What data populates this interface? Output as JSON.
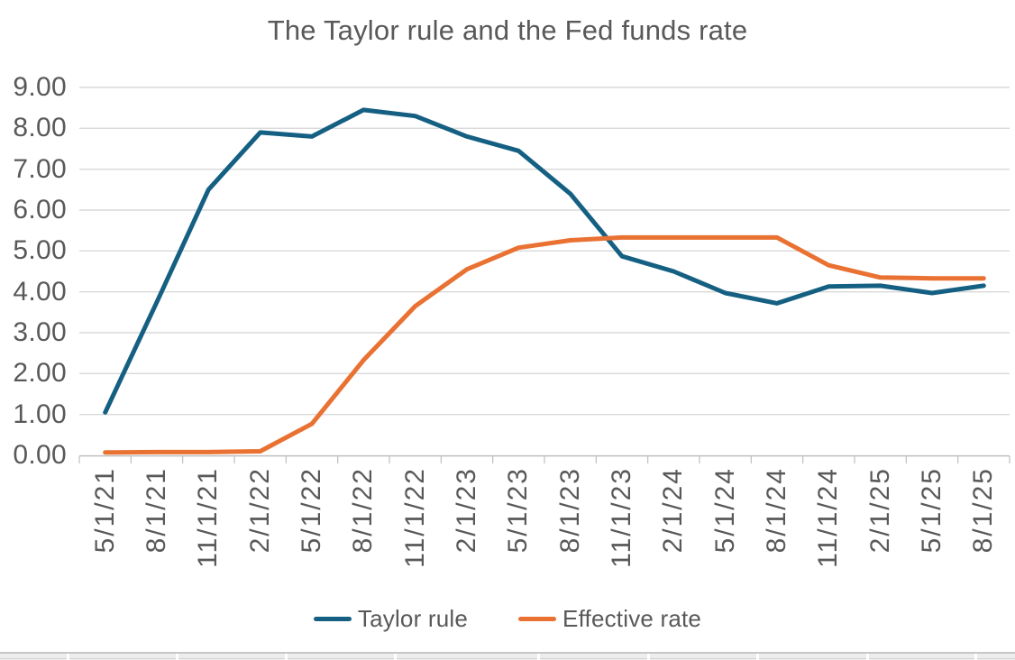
{
  "chart_data": {
    "type": "line",
    "title": "The Taylor rule and the Fed funds rate",
    "categories": [
      "5/1/21",
      "8/1/21",
      "11/1/21",
      "2/1/22",
      "5/1/22",
      "8/1/22",
      "11/1/22",
      "2/1/23",
      "5/1/23",
      "8/1/23",
      "11/1/23",
      "2/1/24",
      "5/1/24",
      "8/1/24",
      "11/1/24",
      "2/1/25",
      "5/1/25",
      "8/1/25"
    ],
    "series": [
      {
        "name": "Taylor rule",
        "color": "#156082",
        "values": [
          1.05,
          3.75,
          6.5,
          7.9,
          7.8,
          8.45,
          8.3,
          7.8,
          7.45,
          6.4,
          4.87,
          4.5,
          3.97,
          3.72,
          4.13,
          4.15,
          3.97,
          4.15
        ]
      },
      {
        "name": "Effective rate",
        "color": "#E97132",
        "values": [
          0.07,
          0.08,
          0.08,
          0.1,
          0.77,
          2.33,
          3.65,
          4.55,
          5.08,
          5.26,
          5.33,
          5.33,
          5.33,
          5.33,
          4.65,
          4.35,
          4.33,
          4.33
        ]
      }
    ],
    "y_tick_labels": [
      "9.00",
      "8.00",
      "7.00",
      "6.00",
      "5.00",
      "4.00",
      "3.00",
      "2.00",
      "1.00",
      "0.00"
    ],
    "ylim": [
      0,
      9
    ],
    "grid": true,
    "legend_position": "bottom",
    "text_color": "#595959",
    "gridline_color": "#D9D9D9",
    "axis_color": "#BFBFBF"
  }
}
